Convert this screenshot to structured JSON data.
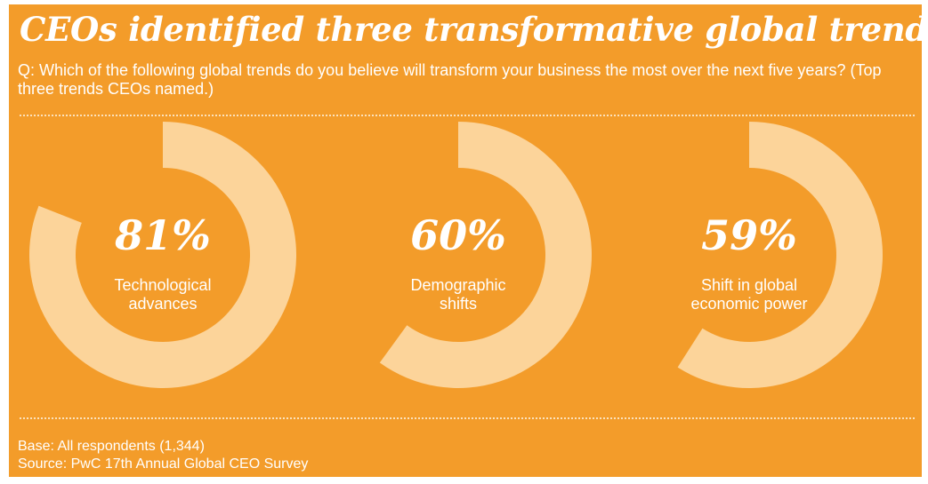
{
  "header": {
    "title": "CEOs identified three transformative global trends",
    "question": "Q: Which of the following global trends do you believe will transform your business the most over the next five years? (Top three trends CEOs named.)"
  },
  "chart_data": {
    "type": "pie",
    "series": [
      {
        "value": 81,
        "value_label": "81%",
        "label_lines": [
          "Technological",
          "advances"
        ]
      },
      {
        "value": 60,
        "value_label": "60%",
        "label_lines": [
          "Demographic",
          "shifts"
        ]
      },
      {
        "value": 59,
        "value_label": "59%",
        "label_lines": [
          "Shift in global",
          "economic power"
        ]
      }
    ],
    "colors": {
      "background": "#f39c2a",
      "ring": "#fcd49a",
      "text": "#ffffff"
    }
  },
  "footer": {
    "base": "Base: All respondents (1,344)",
    "source": "Source: PwC 17th Annual Global CEO Survey"
  }
}
